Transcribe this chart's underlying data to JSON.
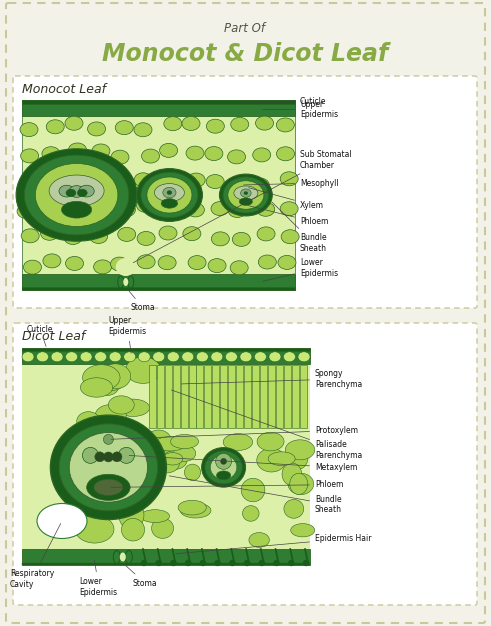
{
  "bg_color": "#f2f2e8",
  "border_color": "#c8c89a",
  "title_part_of": "Part Of",
  "title_main": "Monocot & Dicot Leaf",
  "title_part_of_color": "#555544",
  "title_main_color": "#88aa44",
  "monocot_label": "Monocot Leaf",
  "dicot_label": "Dicot Leaf",
  "section_label_color": "#333322",
  "dark_green": "#1a5c1a",
  "mid_green": "#2e7d32",
  "light_green": "#a8d050",
  "pale_green": "#c8e878",
  "very_light_green": "#ddf0aa",
  "cell_border": "#2d6622",
  "ann_fs": 5.5,
  "ann_color": "#111111"
}
